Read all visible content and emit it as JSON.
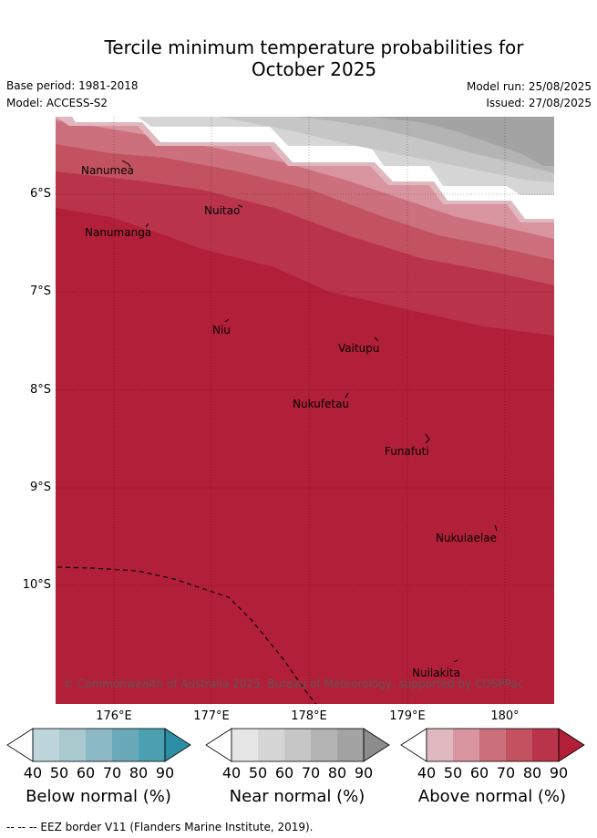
{
  "header": {
    "title_line1": "Tercile minimum temperature probabilities for",
    "title_line2": "October 2025",
    "base_period": "Base period: 1981-2018",
    "model": "Model: ACCESS-S2",
    "model_run": "Model run: 25/08/2025",
    "issued": "Issued: 27/08/2025"
  },
  "map": {
    "y_ticks": [
      "6°S",
      "7°S",
      "8°S",
      "9°S",
      "10°S"
    ],
    "x_ticks": [
      "176°E",
      "177°E",
      "178°E",
      "179°E",
      "180°"
    ],
    "places": [
      "Nanumea",
      "Nuitao",
      "Nanumanga",
      "Niu",
      "Vaitupu",
      "Nukufetau",
      "Funafuti",
      "Nukulaelae",
      "Nuilakita"
    ],
    "copyright": "© Commonwealth of Australia 2025, Bureau of Meteorology, supported by COSPPac",
    "colors": {
      "above": [
        "#e0b8bf",
        "#d8959f",
        "#cc707d",
        "#c2525f",
        "#b9344b",
        "#b21f38"
      ],
      "near": [
        "#e6e6e6",
        "#d6d6d6",
        "#c6c6c6",
        "#b4b4b4",
        "#a3a3a3",
        "#8c8c8c"
      ],
      "below": [
        "#bdd5db",
        "#a9c9cf",
        "#8bb9c5",
        "#6aa9b9",
        "#4aa0b0",
        "#2c8ea5"
      ]
    }
  },
  "colorbars": {
    "ticks": [
      "40",
      "50",
      "60",
      "70",
      "80",
      "90"
    ],
    "below_label": "Below normal (%)",
    "near_label": "Near normal (%)",
    "above_label": "Above normal (%)"
  },
  "footer": {
    "legend_line": "--  --  -- EEZ border V11 (Flanders Marine Institute, 2019)."
  }
}
